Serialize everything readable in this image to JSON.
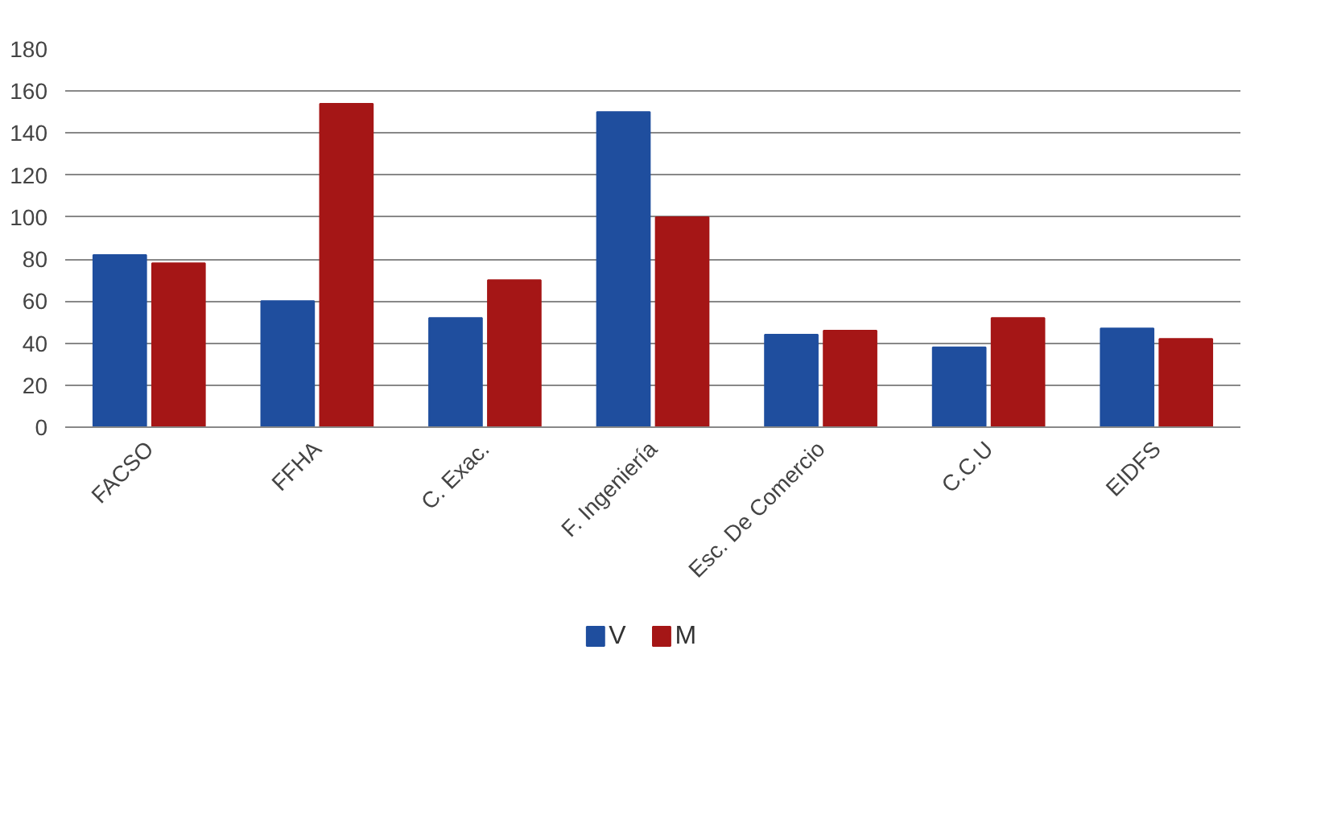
{
  "chart_data": {
    "type": "bar",
    "categories": [
      "FACSO",
      "FFHA",
      "C. Exac.",
      "F. Ingeniería",
      "Esc. De Comercio",
      "C.C.U",
      "EIDFS"
    ],
    "series": [
      {
        "name": "V",
        "color": "#1f4e9e",
        "values": [
          82,
          60,
          52,
          150,
          44,
          38,
          47
        ]
      },
      {
        "name": "M",
        "color": "#a51616",
        "values": [
          78,
          154,
          70,
          100,
          46,
          52,
          42
        ]
      }
    ],
    "ylim": [
      0,
      180
    ],
    "yticks": [
      0,
      20,
      40,
      60,
      80,
      100,
      120,
      140,
      160,
      180
    ],
    "grid": "y",
    "legend": "bottom"
  }
}
